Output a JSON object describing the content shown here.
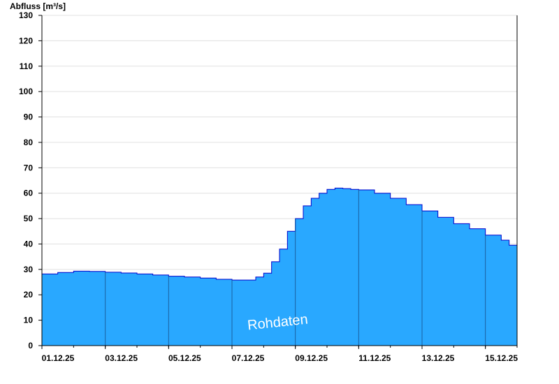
{
  "chart_data": {
    "type": "area",
    "title": "",
    "ylabel": "Abfluss [m³/s]",
    "xlabel": "",
    "ylim": [
      0,
      130
    ],
    "yticks": [
      0,
      10,
      20,
      30,
      40,
      50,
      60,
      70,
      80,
      90,
      100,
      110,
      120,
      130
    ],
    "xlim": [
      "01.12.25 00:00",
      "16.12.25 00:00"
    ],
    "xtick_labels": [
      "01.12.25",
      "03.12.25",
      "05.12.25",
      "07.12.25",
      "09.12.25",
      "11.12.25",
      "13.12.25",
      "15.12.25"
    ],
    "grid": true,
    "annotation": "Rohdaten",
    "colors": {
      "fill": "#29a8ff",
      "line": "#0000cc",
      "grid": "#e0e0e0"
    },
    "series": [
      {
        "x": [
          "01.12.25 00:00",
          "01.12.25 12:00",
          "02.12.25 00:00",
          "02.12.25 12:00",
          "03.12.25 00:00",
          "03.12.25 12:00",
          "04.12.25 00:00",
          "04.12.25 12:00",
          "05.12.25 00:00",
          "05.12.25 12:00",
          "06.12.25 00:00",
          "06.12.25 12:00",
          "07.12.25 00:00",
          "07.12.25 12:00",
          "07.12.25 18:00",
          "08.12.25 00:00",
          "08.12.25 06:00",
          "08.12.25 12:00",
          "08.12.25 18:00",
          "09.12.25 00:00",
          "09.12.25 06:00",
          "09.12.25 12:00",
          "09.12.25 18:00",
          "10.12.25 00:00",
          "10.12.25 06:00",
          "10.12.25 12:00",
          "10.12.25 18:00",
          "11.12.25 00:00",
          "11.12.25 12:00",
          "12.12.25 00:00",
          "12.12.25 12:00",
          "13.12.25 00:00",
          "13.12.25 12:00",
          "14.12.25 00:00",
          "14.12.25 12:00",
          "15.12.25 00:00",
          "15.12.25 12:00",
          "15.12.25 18:00"
        ],
        "y": [
          28.2,
          28.8,
          29.3,
          29.2,
          28.9,
          28.6,
          28.2,
          27.8,
          27.3,
          27.0,
          26.6,
          26.1,
          25.8,
          25.8,
          27.0,
          28.5,
          33.0,
          38.0,
          45.0,
          50.0,
          55.0,
          58.0,
          60.0,
          61.5,
          62.0,
          61.8,
          61.5,
          61.3,
          60.0,
          58.0,
          55.5,
          53.0,
          50.5,
          48.0,
          46.0,
          43.5,
          41.5,
          39.5
        ]
      }
    ]
  }
}
